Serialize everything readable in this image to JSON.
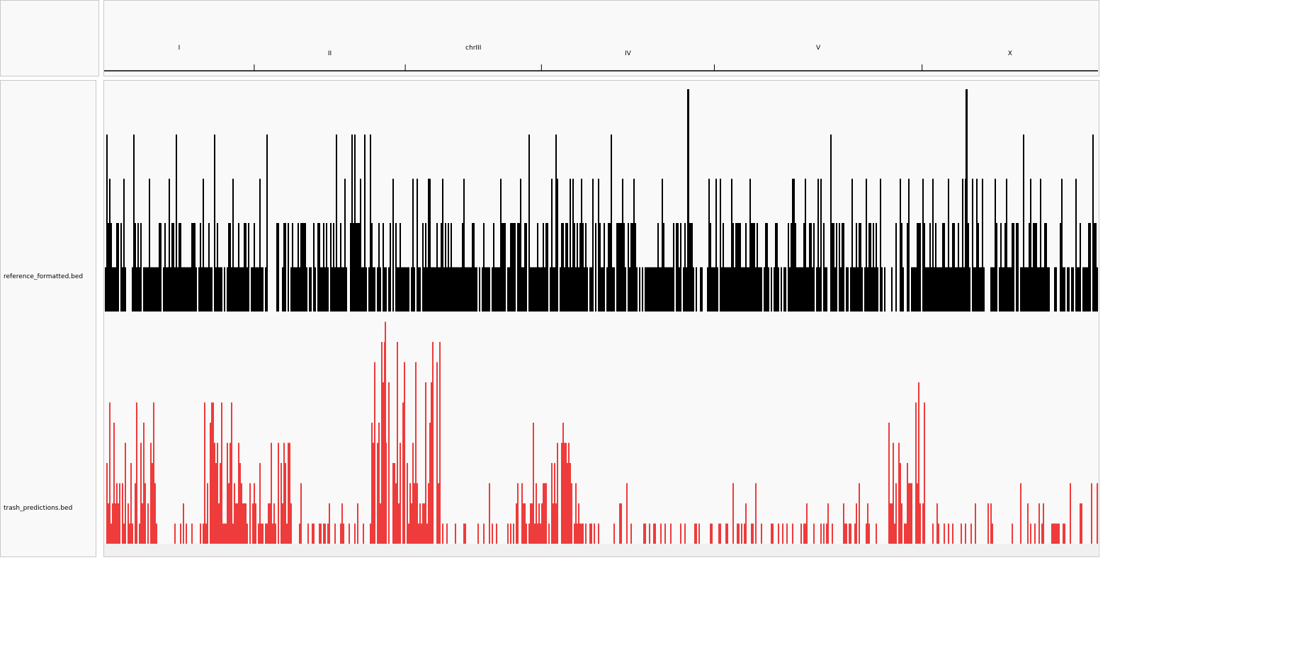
{
  "tracks": [
    {
      "name": "reference_formatted.bed",
      "color": "#000000"
    },
    {
      "name": "trash_predictions.bed",
      "color": "#ee3b3b"
    }
  ],
  "chromosomes": [
    {
      "label": "I",
      "start": 0.0,
      "end": 0.151
    },
    {
      "label": "II",
      "start": 0.151,
      "end": 0.303
    },
    {
      "label": "chrIII",
      "start": 0.303,
      "end": 0.44
    },
    {
      "label": "IV",
      "start": 0.44,
      "end": 0.614
    },
    {
      "label": "V",
      "start": 0.614,
      "end": 0.823
    },
    {
      "label": "X",
      "start": 0.823,
      "end": 1.0
    }
  ]
}
